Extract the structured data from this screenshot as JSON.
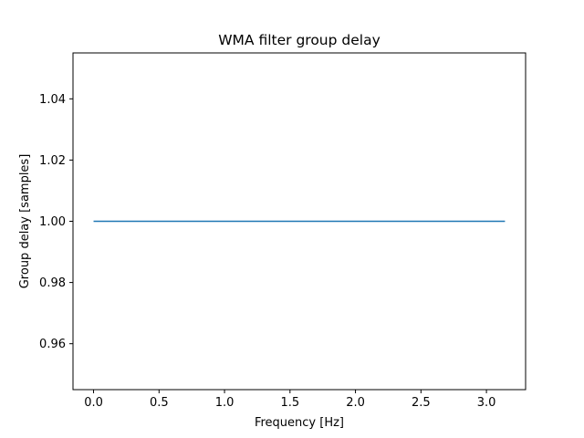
{
  "chart_data": {
    "type": "line",
    "title": "WMA filter group delay",
    "xlabel": "Frequency [Hz]",
    "ylabel": "Group delay [samples]",
    "xlim": [
      -0.157,
      3.299
    ],
    "ylim": [
      0.945,
      1.055
    ],
    "xticks": [
      0.0,
      0.5,
      1.0,
      1.5,
      2.0,
      2.5,
      3.0
    ],
    "xtick_labels": [
      "0.0",
      "0.5",
      "1.0",
      "1.5",
      "2.0",
      "2.5",
      "3.0"
    ],
    "yticks": [
      0.96,
      0.98,
      1.0,
      1.02,
      1.04
    ],
    "ytick_labels": [
      "0.96",
      "0.98",
      "1.00",
      "1.02",
      "1.04"
    ],
    "grid": false,
    "series": [
      {
        "color": "#1f77b4",
        "x": [
          0.0,
          3.1416
        ],
        "y": [
          1.0,
          1.0
        ]
      }
    ]
  }
}
